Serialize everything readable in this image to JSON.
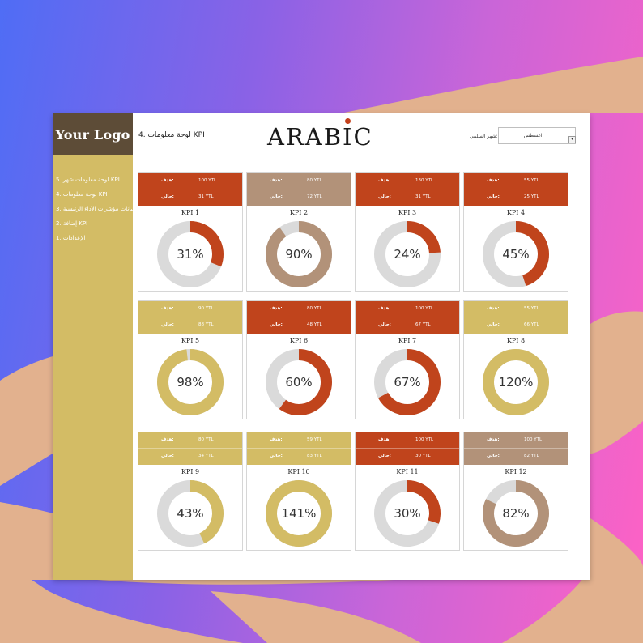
{
  "header": {
    "logo": "Your Logo",
    "page_title": "4. لوحة معلومات KPI",
    "brand_left": "ARAB",
    "brand_i": "I",
    "brand_right": "C",
    "month_label": "شهر السليبي:",
    "month_value": "اغسطس"
  },
  "sidebar": {
    "items": [
      {
        "label": "5. لوحة معلومات شهر KPI"
      },
      {
        "label": "4. لوحة معلومات KPI"
      },
      {
        "label": "3. بيانات مؤشرات الأداء الرئيسية"
      },
      {
        "label": "2. إضافة KPI"
      },
      {
        "label": "1. الإعدادات"
      }
    ]
  },
  "labels": {
    "target": "هدف:",
    "actual": "حالي:"
  },
  "colors": {
    "red": "#c0441c",
    "brown": "#b29279",
    "gold": "#d3bc65",
    "track": "#dadada",
    "sidebar": "#d3bc65",
    "logo_bg": "#5d4c37"
  },
  "kpis": [
    {
      "name": "KPI 1",
      "target": "100 YTL",
      "actual": "31 YTL",
      "percent": 31,
      "percent_label": "31%",
      "color": "red"
    },
    {
      "name": "KPI 2",
      "target": "80 YTL",
      "actual": "72 YTL",
      "percent": 90,
      "percent_label": "90%",
      "color": "brown"
    },
    {
      "name": "KPI 3",
      "target": "130 YTL",
      "actual": "31 YTL",
      "percent": 24,
      "percent_label": "24%",
      "color": "red"
    },
    {
      "name": "KPI 4",
      "target": "55 YTL",
      "actual": "25 YTL",
      "percent": 45,
      "percent_label": "45%",
      "color": "red"
    },
    {
      "name": "KPI 5",
      "target": "90 YTL",
      "actual": "88 YTL",
      "percent": 98,
      "percent_label": "98%",
      "color": "gold"
    },
    {
      "name": "KPI 6",
      "target": "80 YTL",
      "actual": "48 YTL",
      "percent": 60,
      "percent_label": "60%",
      "color": "red"
    },
    {
      "name": "KPI 7",
      "target": "100 YTL",
      "actual": "67 YTL",
      "percent": 67,
      "percent_label": "67%",
      "color": "red"
    },
    {
      "name": "KPI 8",
      "target": "55 YTL",
      "actual": "66 YTL",
      "percent": 120,
      "percent_label": "120%",
      "color": "gold"
    },
    {
      "name": "KPI 9",
      "target": "80 YTL",
      "actual": "34 YTL",
      "percent": 43,
      "percent_label": "43%",
      "color": "gold"
    },
    {
      "name": "KPI 10",
      "target": "59 YTL",
      "actual": "83 YTL",
      "percent": 141,
      "percent_label": "141%",
      "color": "gold"
    },
    {
      "name": "KPI 11",
      "target": "100 YTL",
      "actual": "30 YTL",
      "percent": 30,
      "percent_label": "30%",
      "color": "red"
    },
    {
      "name": "KPI 12",
      "target": "100 YTL",
      "actual": "82 YTL",
      "percent": 82,
      "percent_label": "82%",
      "color": "brown"
    }
  ]
}
